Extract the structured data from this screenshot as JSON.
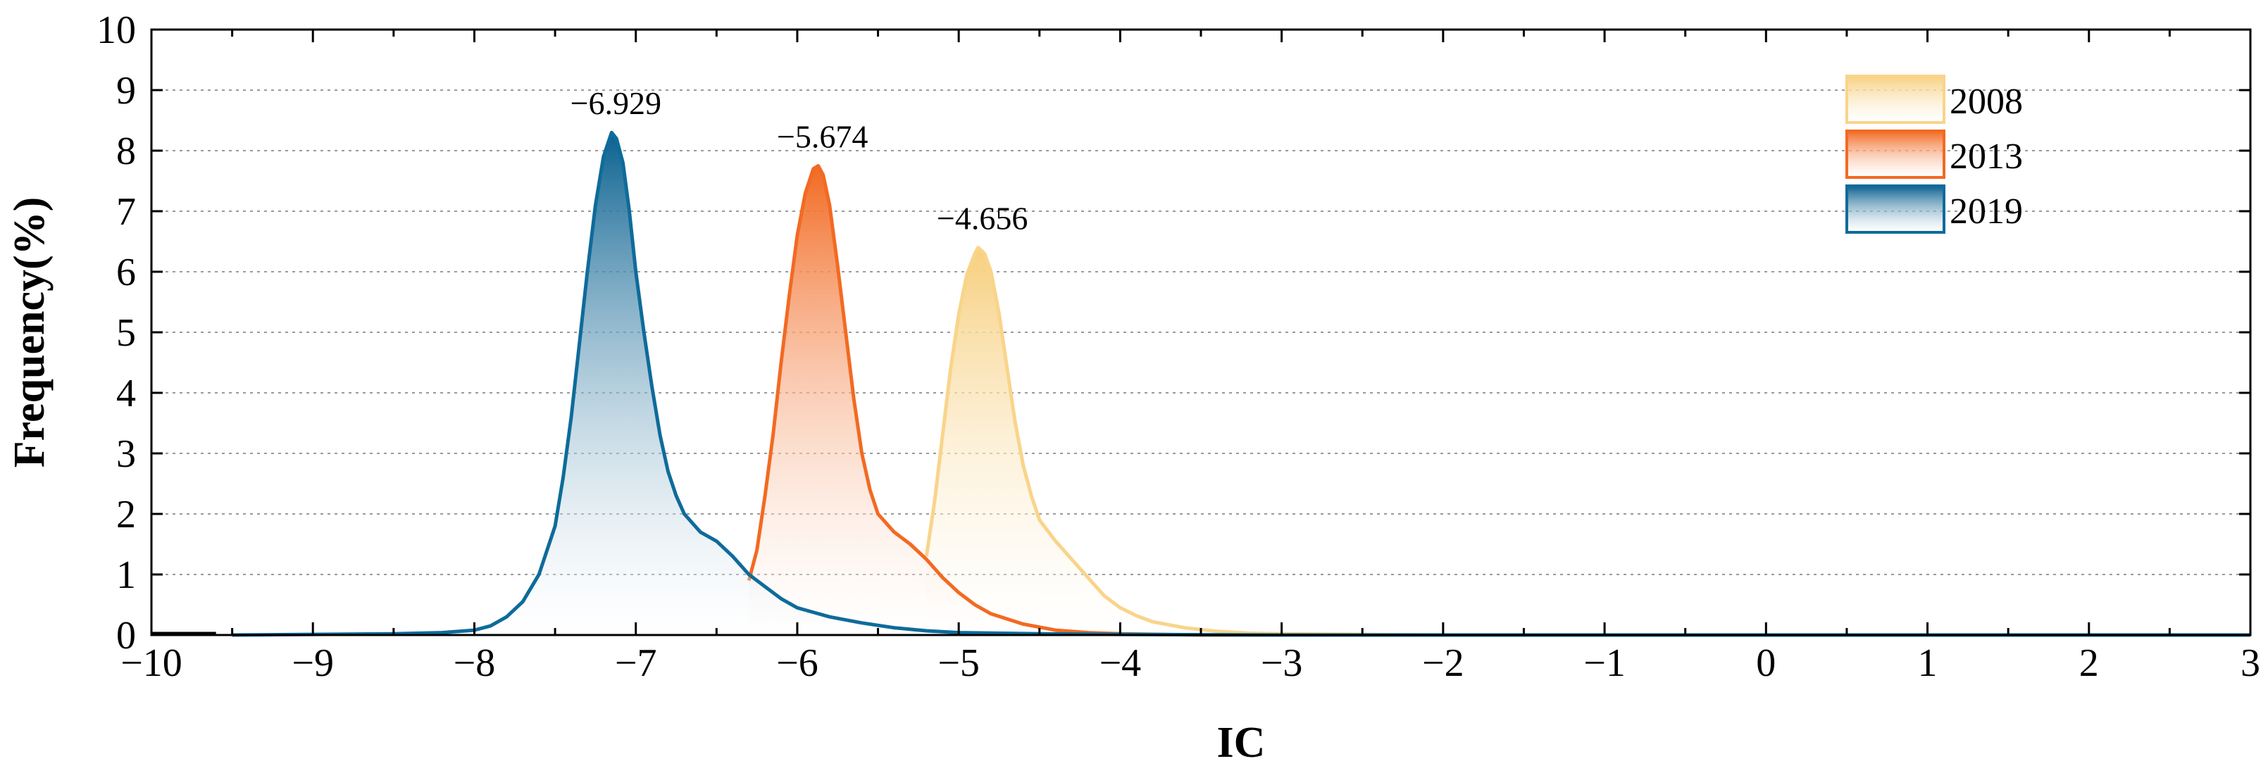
{
  "chart_data": {
    "type": "area",
    "title": "",
    "xlabel": "IC",
    "ylabel": "Frequency(%)",
    "xlim": [
      -10,
      3
    ],
    "ylim": [
      0,
      10
    ],
    "xticks": [
      -10,
      -9,
      -8,
      -7,
      -6,
      -5,
      -4,
      -3,
      -2,
      -1,
      0,
      1,
      2,
      3
    ],
    "xtick_labels": [
      "−10",
      "−9",
      "−8",
      "−7",
      "−6",
      "−5",
      "−4",
      "−3",
      "−2",
      "−1",
      "0",
      "1",
      "2",
      "3"
    ],
    "yticks": [
      0,
      1,
      2,
      3,
      4,
      5,
      6,
      7,
      8,
      9,
      10
    ],
    "ytick_labels": [
      "0",
      "1",
      "2",
      "3",
      "4",
      "5",
      "6",
      "7",
      "8",
      "9",
      "10"
    ],
    "grid": "horizontal-dotted",
    "legend_position": "top-right",
    "series": [
      {
        "name": "2008",
        "color": "#f9d48a",
        "fill_top": "#f7cf7e",
        "peak_label": "−4.656",
        "peak": [
          -4.88,
          6.4
        ],
        "points": [
          [
            -5.2,
            1.3
          ],
          [
            -5.15,
            2.2
          ],
          [
            -5.1,
            3.3
          ],
          [
            -5.05,
            4.4
          ],
          [
            -5.0,
            5.3
          ],
          [
            -4.95,
            5.95
          ],
          [
            -4.9,
            6.3
          ],
          [
            -4.88,
            6.4
          ],
          [
            -4.84,
            6.3
          ],
          [
            -4.8,
            6.0
          ],
          [
            -4.75,
            5.3
          ],
          [
            -4.7,
            4.4
          ],
          [
            -4.65,
            3.5
          ],
          [
            -4.6,
            2.8
          ],
          [
            -4.55,
            2.3
          ],
          [
            -4.5,
            1.9
          ],
          [
            -4.4,
            1.55
          ],
          [
            -4.3,
            1.25
          ],
          [
            -4.2,
            0.95
          ],
          [
            -4.1,
            0.65
          ],
          [
            -4.0,
            0.45
          ],
          [
            -3.9,
            0.32
          ],
          [
            -3.8,
            0.22
          ],
          [
            -3.6,
            0.12
          ],
          [
            -3.4,
            0.06
          ],
          [
            -3.2,
            0.03
          ],
          [
            -3.0,
            0.02
          ],
          [
            -2.5,
            0.01
          ],
          [
            -2.0,
            0.0
          ],
          [
            3.0,
            0.0
          ]
        ]
      },
      {
        "name": "2013",
        "color": "#f26a22",
        "fill_top": "#f26a22",
        "peak_label": "−5.674",
        "peak": [
          -5.87,
          7.75
        ],
        "points": [
          [
            -6.3,
            0.9
          ],
          [
            -6.25,
            1.4
          ],
          [
            -6.2,
            2.3
          ],
          [
            -6.15,
            3.3
          ],
          [
            -6.1,
            4.5
          ],
          [
            -6.05,
            5.6
          ],
          [
            -6.0,
            6.6
          ],
          [
            -5.95,
            7.3
          ],
          [
            -5.9,
            7.7
          ],
          [
            -5.87,
            7.75
          ],
          [
            -5.84,
            7.6
          ],
          [
            -5.8,
            7.1
          ],
          [
            -5.75,
            6.1
          ],
          [
            -5.7,
            5.0
          ],
          [
            -5.65,
            3.9
          ],
          [
            -5.6,
            3.0
          ],
          [
            -5.55,
            2.4
          ],
          [
            -5.5,
            2.0
          ],
          [
            -5.4,
            1.7
          ],
          [
            -5.3,
            1.5
          ],
          [
            -5.2,
            1.25
          ],
          [
            -5.1,
            0.95
          ],
          [
            -5.0,
            0.7
          ],
          [
            -4.9,
            0.5
          ],
          [
            -4.8,
            0.35
          ],
          [
            -4.6,
            0.18
          ],
          [
            -4.4,
            0.08
          ],
          [
            -4.2,
            0.04
          ],
          [
            -4.0,
            0.02
          ],
          [
            -3.5,
            0.0
          ],
          [
            3.0,
            0.0
          ]
        ]
      },
      {
        "name": "2019",
        "color": "#0e6b9a",
        "fill_top": "#0a6190",
        "peak_label": "−6.929",
        "peak": [
          -7.15,
          8.3
        ],
        "points": [
          [
            -9.5,
            0.0
          ],
          [
            -8.5,
            0.02
          ],
          [
            -8.2,
            0.04
          ],
          [
            -8.0,
            0.08
          ],
          [
            -7.9,
            0.15
          ],
          [
            -7.8,
            0.3
          ],
          [
            -7.7,
            0.55
          ],
          [
            -7.6,
            1.0
          ],
          [
            -7.5,
            1.8
          ],
          [
            -7.45,
            2.6
          ],
          [
            -7.4,
            3.6
          ],
          [
            -7.35,
            4.8
          ],
          [
            -7.3,
            6.0
          ],
          [
            -7.25,
            7.1
          ],
          [
            -7.2,
            7.9
          ],
          [
            -7.15,
            8.3
          ],
          [
            -7.12,
            8.2
          ],
          [
            -7.08,
            7.8
          ],
          [
            -7.04,
            7.0
          ],
          [
            -7.0,
            6.0
          ],
          [
            -6.95,
            5.0
          ],
          [
            -6.9,
            4.1
          ],
          [
            -6.85,
            3.3
          ],
          [
            -6.8,
            2.7
          ],
          [
            -6.75,
            2.3
          ],
          [
            -6.7,
            2.0
          ],
          [
            -6.6,
            1.7
          ],
          [
            -6.5,
            1.55
          ],
          [
            -6.4,
            1.3
          ],
          [
            -6.3,
            1.0
          ],
          [
            -6.2,
            0.8
          ],
          [
            -6.1,
            0.6
          ],
          [
            -6.0,
            0.45
          ],
          [
            -5.8,
            0.3
          ],
          [
            -5.6,
            0.2
          ],
          [
            -5.4,
            0.12
          ],
          [
            -5.2,
            0.07
          ],
          [
            -5.0,
            0.04
          ],
          [
            -4.5,
            0.02
          ],
          [
            -4.0,
            0.01
          ],
          [
            -3.0,
            0.0
          ],
          [
            3.0,
            0.0
          ]
        ]
      }
    ]
  }
}
